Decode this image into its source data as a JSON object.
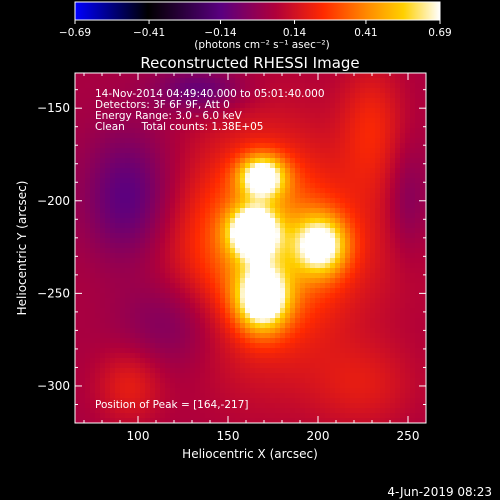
{
  "colorbar": {
    "ticks": [
      "−0.69",
      "−0.41",
      "−0.14",
      "0.14",
      "0.41",
      "0.69"
    ],
    "tick_values": [
      -0.69,
      -0.41,
      -0.14,
      0.14,
      0.41,
      0.69
    ],
    "range": [
      -0.69,
      0.69
    ],
    "units": "(photons cm⁻² s⁻¹ asec⁻²)",
    "colormap": [
      "#0000ff",
      "#000000",
      "#5a0080",
      "#b0003a",
      "#ff2a00",
      "#ff8a00",
      "#ffd000",
      "#ffffff"
    ]
  },
  "chart_data": {
    "type": "heatmap",
    "title": "Reconstructed RHESSI Image",
    "xlabel": "Heliocentric X (arcsec)",
    "ylabel": "Heliocentric Y (arcsec)",
    "xlim": [
      65,
      260
    ],
    "ylim": [
      -320,
      -131
    ],
    "x_ticks": [
      100,
      150,
      200,
      250
    ],
    "y_ticks": [
      -150,
      -200,
      -250,
      -300
    ],
    "x_tick_labels": [
      "100",
      "150",
      "200",
      "250"
    ],
    "y_tick_labels": [
      "−150",
      "−200",
      "−250",
      "−300"
    ],
    "annotations": [
      "14-Nov-2014 04:49:40.000 to 05:01:40.000",
      "Detectors: 3F 6F 9F, Att 0",
      "Energy Range: 3.0 - 6.0 keV",
      "Clean     Total counts: 1.38E+05"
    ],
    "peak_label": "Position of Peak = [164,-217]",
    "peak": [
      164,
      -217
    ],
    "sources": [
      {
        "x": 169,
        "y": -187,
        "amp": 0.58,
        "sx": 9,
        "sy": 8
      },
      {
        "x": 164,
        "y": -217,
        "amp": 0.69,
        "sx": 9,
        "sy": 9
      },
      {
        "x": 169,
        "y": -253,
        "amp": 0.62,
        "sx": 10,
        "sy": 12
      },
      {
        "x": 202,
        "y": -224,
        "amp": 0.52,
        "sx": 10,
        "sy": 11
      }
    ]
  },
  "footer": {
    "date": "4-Jun-2019 08:23"
  }
}
